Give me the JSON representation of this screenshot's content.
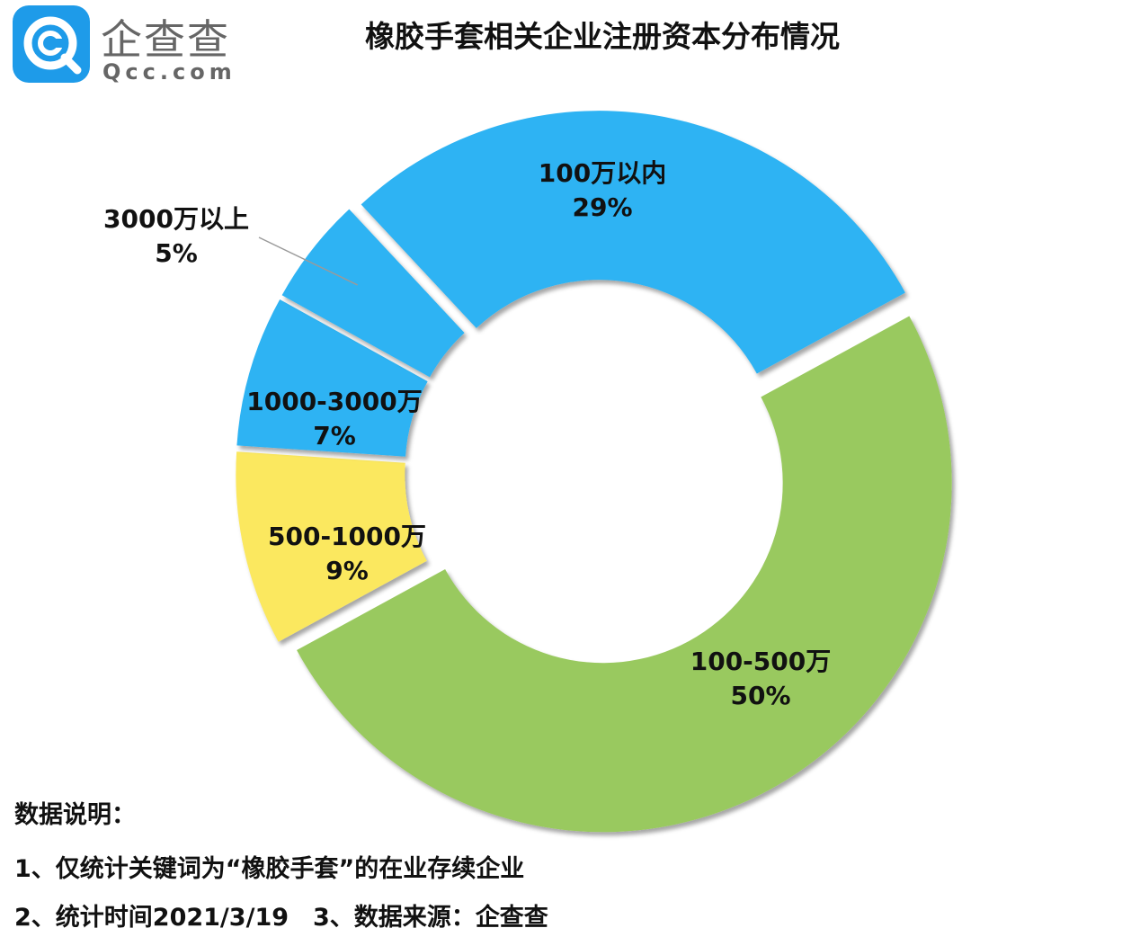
{
  "logo": {
    "icon": "qcc-logo-icon",
    "brand_cn": "企查查",
    "brand_en": "Qcc.com",
    "color": "#1e9be9"
  },
  "header": {
    "title": "橡胶手套相关企业注册资本分布情况"
  },
  "chart_data": {
    "type": "pie",
    "title": "橡胶手套相关企业注册资本分布情况",
    "donut": true,
    "exploded": true,
    "categories": [
      "100万以内",
      "100-500万",
      "500-1000万",
      "1000-3000万",
      "3000万以上"
    ],
    "values": [
      29,
      50,
      9,
      7,
      5
    ],
    "labels": [
      "29%",
      "50%",
      "9%",
      "7%",
      "5%"
    ],
    "colors": [
      "#2db3f3",
      "#99c95e",
      "#fbe85e",
      "#2db3f3",
      "#2db3f3"
    ],
    "legend": "none"
  },
  "notes": {
    "heading": "数据说明：",
    "line1": "1、仅统计关键词为“橡胶手套”的在业存续企业",
    "line2": "2、统计时间2021/3/19　3、数据来源：企查查"
  }
}
